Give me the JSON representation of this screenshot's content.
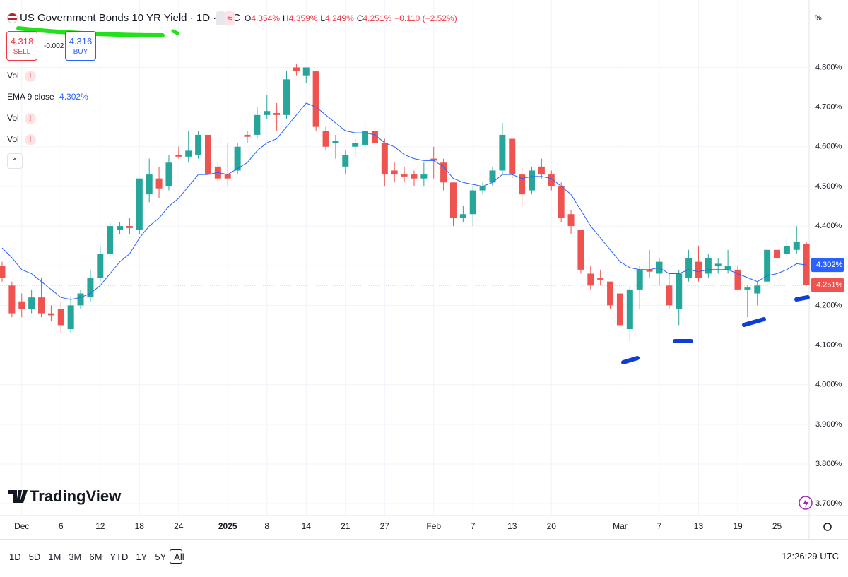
{
  "header": {
    "symbol": "US Government Bonds 10 YR Yield · 1D · TVC",
    "ohlc": [
      {
        "key": "O",
        "value": "4.354%"
      },
      {
        "key": "H",
        "value": "4.359%"
      },
      {
        "key": "L",
        "value": "4.249%"
      },
      {
        "key": "C",
        "value": "4.251%"
      }
    ],
    "change": "−0.110 (−2.52%)"
  },
  "trade": {
    "sell_price": "4.318",
    "sell": "SELL",
    "spread": "-0.002",
    "buy_price": "4.316",
    "buy": "BUY"
  },
  "legend_rows": [
    {
      "name": "Vol"
    },
    {
      "name": "EMA 9 close",
      "value": "4.302%"
    },
    {
      "name": "Vol"
    },
    {
      "name": "Vol"
    }
  ],
  "scale_mode": "%",
  "logo": "TradingView",
  "timeframes": [
    "1D",
    "5D",
    "1M",
    "3M",
    "6M",
    "YTD",
    "1Y",
    "5Y",
    "All"
  ],
  "clock": "12:26:29 UTC",
  "chart_data": {
    "type": "candlestick",
    "categories": [
      null,
      null,
      "Dec",
      null,
      null,
      null,
      "6",
      null,
      null,
      null,
      "12",
      null,
      null,
      null,
      "18",
      null,
      null,
      null,
      "24",
      null,
      null,
      null,
      null,
      "2025",
      null,
      null,
      null,
      "8",
      null,
      null,
      null,
      "14",
      null,
      null,
      null,
      "21",
      null,
      null,
      null,
      "27",
      null,
      null,
      null,
      null,
      "Feb",
      null,
      null,
      null,
      "7",
      null,
      null,
      null,
      "13",
      null,
      null,
      null,
      "20",
      null,
      null,
      null,
      null,
      null,
      null,
      "Mar",
      null,
      null,
      null,
      "7",
      null,
      null,
      null,
      "13",
      null,
      null,
      null,
      "19",
      null,
      null,
      null,
      "25",
      null,
      null,
      null
    ],
    "open": [
      4.3,
      4.25,
      4.21,
      4.19,
      4.22,
      4.18,
      4.19,
      4.14,
      4.2,
      4.22,
      4.27,
      4.33,
      4.39,
      4.4,
      4.39,
      4.48,
      4.52,
      4.5,
      4.58,
      4.575,
      4.58,
      4.63,
      4.55,
      4.53,
      4.54,
      4.63,
      4.63,
      4.68,
      4.685,
      4.68,
      4.8,
      4.78,
      4.79,
      4.64,
      4.61,
      4.55,
      4.6,
      4.605,
      4.64,
      4.61,
      4.54,
      4.53,
      4.53,
      4.52,
      4.57,
      4.56,
      4.51,
      4.42,
      4.43,
      4.49,
      4.51,
      4.54,
      4.62,
      4.53,
      4.49,
      4.55,
      4.53,
      4.5,
      4.43,
      4.39,
      4.28,
      4.27,
      4.26,
      4.23,
      4.14,
      4.24,
      4.29,
      4.28,
      4.25,
      4.19,
      4.27,
      4.31,
      4.28,
      4.3,
      4.29,
      4.29,
      4.24,
      4.23,
      4.26,
      4.34,
      4.33,
      4.34,
      4.354
    ],
    "high": [
      4.31,
      4.26,
      4.23,
      4.24,
      4.27,
      4.2,
      4.21,
      4.22,
      4.24,
      4.29,
      4.35,
      4.41,
      4.41,
      4.42,
      4.52,
      4.57,
      4.55,
      4.58,
      4.6,
      4.64,
      4.64,
      4.64,
      4.56,
      4.61,
      4.61,
      4.64,
      4.7,
      4.73,
      4.71,
      4.79,
      4.81,
      4.8,
      4.79,
      4.65,
      4.63,
      4.59,
      4.62,
      4.66,
      4.65,
      4.62,
      4.56,
      4.55,
      4.54,
      4.56,
      4.6,
      4.57,
      4.51,
      4.45,
      4.5,
      4.51,
      4.55,
      4.66,
      4.62,
      4.55,
      4.55,
      4.57,
      4.54,
      4.51,
      4.44,
      4.39,
      4.3,
      4.29,
      4.26,
      4.25,
      4.25,
      4.3,
      4.34,
      4.32,
      4.28,
      4.29,
      4.34,
      4.35,
      4.33,
      4.32,
      4.34,
      4.3,
      4.25,
      4.26,
      4.34,
      4.37,
      4.37,
      4.4,
      4.359
    ],
    "low": [
      4.26,
      4.17,
      4.17,
      4.18,
      4.17,
      4.16,
      4.13,
      4.13,
      4.19,
      4.21,
      4.26,
      4.32,
      4.38,
      4.38,
      4.38,
      4.46,
      4.47,
      4.49,
      4.57,
      4.56,
      4.57,
      4.53,
      4.51,
      4.5,
      4.53,
      4.61,
      4.62,
      4.67,
      4.64,
      4.67,
      4.78,
      4.76,
      4.64,
      4.59,
      4.57,
      4.53,
      4.58,
      4.59,
      4.6,
      4.5,
      4.51,
      4.51,
      4.5,
      4.5,
      4.52,
      4.49,
      4.4,
      4.41,
      4.4,
      4.48,
      4.5,
      4.53,
      4.52,
      4.45,
      4.48,
      4.52,
      4.49,
      4.41,
      4.38,
      4.28,
      4.24,
      4.25,
      4.19,
      4.14,
      4.11,
      4.19,
      4.27,
      4.25,
      4.19,
      4.15,
      4.26,
      4.26,
      4.27,
      4.28,
      4.28,
      4.24,
      4.17,
      4.2,
      4.26,
      4.31,
      4.32,
      4.33,
      4.249
    ],
    "close": [
      4.27,
      4.18,
      4.19,
      4.22,
      4.18,
      4.175,
      4.15,
      4.2,
      4.23,
      4.27,
      4.33,
      4.4,
      4.4,
      4.395,
      4.52,
      4.53,
      4.495,
      4.56,
      4.575,
      4.59,
      4.63,
      4.53,
      4.52,
      4.52,
      4.6,
      4.625,
      4.68,
      4.69,
      4.68,
      4.77,
      4.79,
      4.8,
      4.65,
      4.6,
      4.615,
      4.58,
      4.61,
      4.64,
      4.61,
      4.53,
      4.53,
      4.525,
      4.52,
      4.53,
      4.565,
      4.51,
      4.42,
      4.43,
      4.49,
      4.5,
      4.54,
      4.63,
      4.53,
      4.48,
      4.54,
      4.53,
      4.5,
      4.42,
      4.4,
      4.29,
      4.25,
      4.265,
      4.2,
      4.15,
      4.24,
      4.29,
      4.285,
      4.31,
      4.2,
      4.28,
      4.32,
      4.27,
      4.32,
      4.305,
      4.3,
      4.24,
      4.245,
      4.25,
      4.34,
      4.32,
      4.35,
      4.36,
      4.251
    ],
    "up_color": "#26a69a",
    "down_color": "#ef5350",
    "ema": {
      "color": "#2962ff",
      "values": [
        4.345,
        4.32,
        4.29,
        4.28,
        4.26,
        4.24,
        4.22,
        4.215,
        4.22,
        4.23,
        4.25,
        4.28,
        4.31,
        4.33,
        4.37,
        4.4,
        4.42,
        4.45,
        4.47,
        4.5,
        4.53,
        4.53,
        4.535,
        4.53,
        4.545,
        4.56,
        4.59,
        4.61,
        4.62,
        4.65,
        4.68,
        4.71,
        4.7,
        4.68,
        4.66,
        4.64,
        4.635,
        4.635,
        4.63,
        4.61,
        4.6,
        4.58,
        4.57,
        4.565,
        4.565,
        4.55,
        4.52,
        4.51,
        4.505,
        4.5,
        4.51,
        4.53,
        4.53,
        4.52,
        4.525,
        4.525,
        4.52,
        4.5,
        4.48,
        4.44,
        4.4,
        4.37,
        4.34,
        4.31,
        4.295,
        4.29,
        4.29,
        4.295,
        4.28,
        4.28,
        4.29,
        4.285,
        4.29,
        4.29,
        4.29,
        4.28,
        4.27,
        4.26,
        4.275,
        4.28,
        4.29,
        4.305,
        4.302
      ]
    },
    "ema_price": {
      "value": 4.302,
      "label": "4.302%"
    },
    "last_price": {
      "value": 4.251,
      "label": "4.251%"
    },
    "ylim": [
      3.67,
      4.97
    ],
    "yticks": [
      {
        "value": 4.8,
        "label": "4.800%"
      },
      {
        "value": 4.7,
        "label": "4.700%"
      },
      {
        "value": 4.6,
        "label": "4.600%"
      },
      {
        "value": 4.5,
        "label": "4.500%"
      },
      {
        "value": 4.4,
        "label": "4.400%"
      },
      {
        "value": 4.3,
        "label": "4.300%"
      },
      {
        "value": 4.2,
        "label": "4.200%"
      },
      {
        "value": 4.1,
        "label": "4.100%"
      },
      {
        "value": 4.0,
        "label": "4.000%"
      },
      {
        "value": 3.9,
        "label": "3.900%"
      },
      {
        "value": 3.8,
        "label": "3.800%"
      },
      {
        "value": 3.7,
        "label": "3.700%"
      }
    ],
    "grid": true
  }
}
